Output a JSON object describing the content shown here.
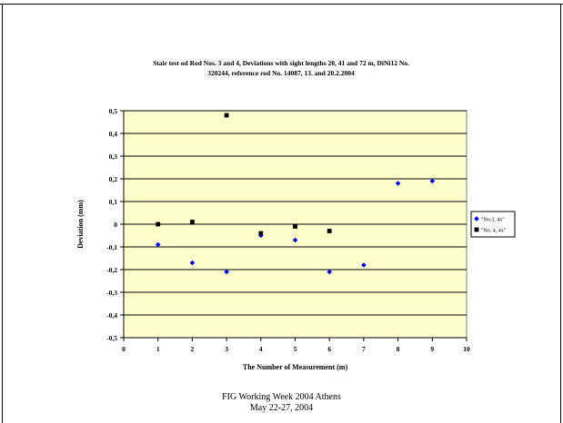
{
  "chart_data": {
    "type": "scatter",
    "title": "Stair test od Rod Nos. 3 and 4, Deviations with sight lengths 20, 41 and 72 m, DiNi12 No. 320244, reference rod No. 14087, 13. and 20.2.2004",
    "title_lines": [
      "Stair test od Rod Nos. 3 and 4, Deviations with sight lengths  20, 41 and 72 m, DiNi12 No.",
      "320244, reference rod No. 14087, 13. and 20.2.2004"
    ],
    "xlabel": "The Number of Measurement (m)",
    "ylabel": "Deviation (mm)",
    "xlim": [
      0,
      10
    ],
    "ylim": [
      -0.5,
      0.5
    ],
    "x_ticks": [
      "0",
      "1",
      "2",
      "3",
      "4",
      "5",
      "6",
      "7",
      "8",
      "9",
      "10"
    ],
    "y_ticks": [
      "0,5",
      "0,4",
      "0,3",
      "0,2",
      "0,1",
      "0",
      "-0,1",
      "-0,2",
      "-0,3",
      "-0,4",
      "-0,5"
    ],
    "grid": "horizontal",
    "plot_background": "#FFFFCC",
    "legend_position": "right",
    "series": [
      {
        "name": "\"No.3, 4x\"",
        "marker": "diamond",
        "color": "#0000FF",
        "points": [
          {
            "x": 1,
            "y": -0.09
          },
          {
            "x": 2,
            "y": -0.17
          },
          {
            "x": 3,
            "y": -0.21
          },
          {
            "x": 4,
            "y": -0.05
          },
          {
            "x": 5,
            "y": -0.07
          },
          {
            "x": 6,
            "y": -0.21
          },
          {
            "x": 7,
            "y": -0.18
          },
          {
            "x": 8,
            "y": 0.18
          },
          {
            "x": 9,
            "y": 0.19
          }
        ]
      },
      {
        "name": "\"No. 4, 4x\"",
        "marker": "square",
        "color": "#000000",
        "points": [
          {
            "x": 1,
            "y": 0.0
          },
          {
            "x": 2,
            "y": 0.01
          },
          {
            "x": 3,
            "y": 0.48
          },
          {
            "x": 4,
            "y": -0.04
          },
          {
            "x": 5,
            "y": -0.01
          },
          {
            "x": 6,
            "y": -0.03
          }
        ]
      }
    ]
  },
  "footer": {
    "line1": "FIG Working Week 2004 Athens",
    "line2": "May 22-27, 2004"
  }
}
